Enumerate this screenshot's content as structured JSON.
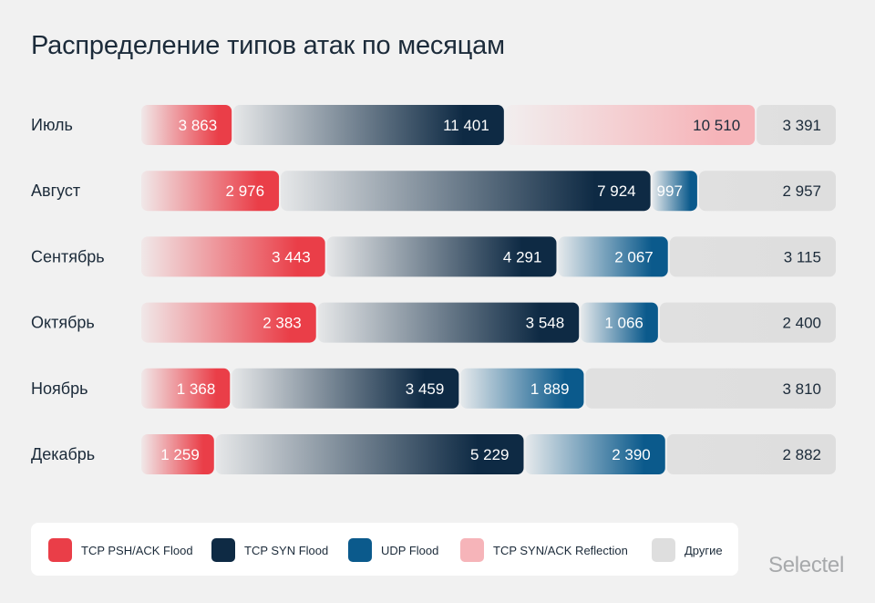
{
  "chart_data": {
    "type": "bar",
    "orientation": "horizontal",
    "stacked": true,
    "normalized": true,
    "title": "Распределение типов атак по месяцам",
    "categories": [
      "Июль",
      "Август",
      "Сентябрь",
      "Октябрь",
      "Ноябрь",
      "Декабрь"
    ],
    "series": [
      {
        "name": "TCP PSH/ACK Flood",
        "color": "#ea3e48",
        "values": [
          3863,
          2976,
          3443,
          2383,
          1368,
          1259
        ],
        "labels": [
          "3 863",
          "2 976",
          "3 443",
          "2 383",
          "1 368",
          "1 259"
        ]
      },
      {
        "name": "TCP SYN Flood",
        "color": "#0e2a44",
        "values": [
          11401,
          7924,
          4291,
          3548,
          3459,
          5229
        ],
        "labels": [
          "11 401",
          "7 924",
          "4 291",
          "3 548",
          "3 459",
          "5 229"
        ]
      },
      {
        "name": "UDP Flood",
        "color": "#0b5a8c",
        "values": [
          0,
          997,
          2067,
          1066,
          1889,
          2390
        ],
        "labels": [
          "",
          "997",
          "2 067",
          "1 066",
          "1 889",
          "2 390"
        ]
      },
      {
        "name": "TCP SYN/ACK Reflection",
        "color": "#f6b4b9",
        "values": [
          10510,
          0,
          0,
          0,
          0,
          0
        ],
        "labels": [
          "10 510",
          "",
          "",
          "",
          "",
          ""
        ]
      },
      {
        "name": "Другие",
        "color": "#dedede",
        "values": [
          3391,
          2957,
          3115,
          2400,
          3810,
          2882
        ],
        "labels": [
          "3 391",
          "2 957",
          "3 115",
          "2 400",
          "3 810",
          "2 882"
        ]
      }
    ],
    "legend": "bottom"
  },
  "legend": [
    {
      "label": "TCP PSH/ACK Flood",
      "color": "#ea3e48"
    },
    {
      "label": "TCP SYN Flood",
      "color": "#0e2a44"
    },
    {
      "label": "UDP Flood",
      "color": "#0b5a8c"
    },
    {
      "label": "TCP SYN/ACK Reflection",
      "color": "#f6b4b9"
    },
    {
      "label": "Другие",
      "color": "#dedede"
    }
  ],
  "brand": "Selectel"
}
